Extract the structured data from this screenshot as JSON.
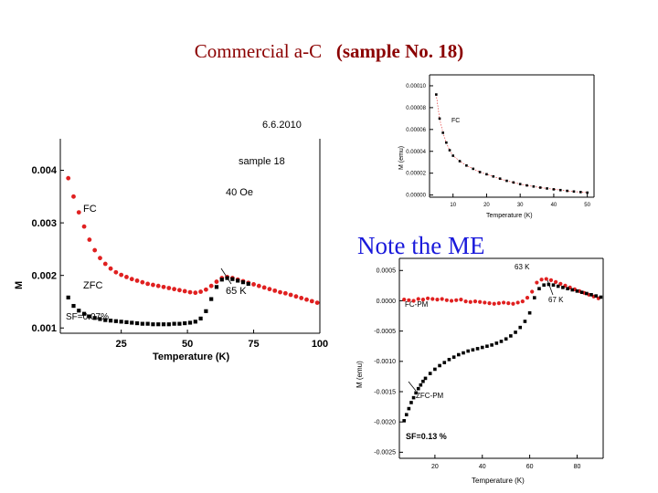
{
  "slide": {
    "title_plain": "Commercial a-C",
    "title_bold": "(sample No. 18)",
    "note": "Note the ME"
  },
  "colors": {
    "fc": "#e02020",
    "zfc": "#000000",
    "title": "#8b0000",
    "note": "#1a1adb",
    "sf_pink": "#d0208a"
  },
  "chart_data": [
    {
      "type": "scatter",
      "id": "main",
      "date": "6.6.2010",
      "xlabel": "Temperature (K)",
      "ylabel": "M",
      "xticks": [
        25,
        50,
        75,
        100
      ],
      "yticks": [
        "0.001",
        "0.002",
        "0.003",
        "0.004"
      ],
      "xlim": [
        2,
        100
      ],
      "ylim": [
        0.0009,
        0.0046
      ],
      "annotations": {
        "sample": "sample 18",
        "field": "40 Oe",
        "fc": "FC",
        "zfc": "ZFC",
        "peak": "65 K",
        "sf": "SF=0.07%"
      },
      "series": [
        {
          "name": "FC",
          "color": "#e02020",
          "x": [
            5,
            7,
            9,
            11,
            13,
            15,
            17,
            19,
            21,
            23,
            25,
            27,
            29,
            31,
            33,
            35,
            37,
            39,
            41,
            43,
            45,
            47,
            49,
            51,
            53,
            55,
            57,
            59,
            61,
            63,
            65,
            67,
            69,
            71,
            73,
            75,
            77,
            79,
            81,
            83,
            85,
            87,
            89,
            91,
            93,
            95,
            97,
            99
          ],
          "y": [
            0.00385,
            0.0035,
            0.0032,
            0.00293,
            0.00268,
            0.00248,
            0.00233,
            0.00222,
            0.00213,
            0.00206,
            0.00201,
            0.00197,
            0.00193,
            0.0019,
            0.00187,
            0.00184,
            0.00182,
            0.0018,
            0.00178,
            0.00176,
            0.00174,
            0.00172,
            0.0017,
            0.00168,
            0.00167,
            0.00169,
            0.00173,
            0.0018,
            0.00188,
            0.00195,
            0.00197,
            0.00195,
            0.00192,
            0.00189,
            0.00186,
            0.00183,
            0.0018,
            0.00177,
            0.00174,
            0.00171,
            0.00168,
            0.00166,
            0.00163,
            0.0016,
            0.00157,
            0.00154,
            0.00151,
            0.00148
          ]
        },
        {
          "name": "ZFC",
          "color": "#000000",
          "x": [
            5,
            7,
            9,
            11,
            13,
            15,
            17,
            19,
            21,
            23,
            25,
            27,
            29,
            31,
            33,
            35,
            37,
            39,
            41,
            43,
            45,
            47,
            49,
            51,
            53,
            55,
            57,
            59,
            61,
            63,
            65,
            67,
            69,
            71,
            73
          ],
          "y": [
            0.00158,
            0.00142,
            0.00133,
            0.00127,
            0.00122,
            0.00119,
            0.00117,
            0.00115,
            0.00114,
            0.00113,
            0.00112,
            0.00111,
            0.0011,
            0.00109,
            0.00108,
            0.00108,
            0.00107,
            0.00107,
            0.00107,
            0.00107,
            0.00108,
            0.00108,
            0.00109,
            0.0011,
            0.00112,
            0.00118,
            0.00132,
            0.00155,
            0.00178,
            0.00192,
            0.00195,
            0.00193,
            0.0019,
            0.00187,
            0.00184
          ]
        }
      ]
    },
    {
      "type": "scatter",
      "id": "inset",
      "xlabel": "Temperature (K)",
      "ylabel": "M (emu)",
      "xticks": [
        10,
        20,
        30,
        40,
        50
      ],
      "yticks": [
        "0.00010",
        "0.00008",
        "0.00006",
        "0.00004",
        "0.00002",
        "0.00000"
      ],
      "xlim": [
        3,
        52
      ],
      "ylim": [
        -2e-06,
        0.00011
      ],
      "annotations": {
        "fc": "FC"
      },
      "series": [
        {
          "name": "FC",
          "color": "#000000",
          "x": [
            5,
            6,
            7,
            8,
            9,
            10,
            12,
            14,
            16,
            18,
            20,
            22,
            24,
            26,
            28,
            30,
            32,
            34,
            36,
            38,
            40,
            42,
            44,
            46,
            48,
            50
          ],
          "y": [
            9.2e-05,
            7e-05,
            5.7e-05,
            4.8e-05,
            4.1e-05,
            3.6e-05,
            3.1e-05,
            2.7e-05,
            2.4e-05,
            2.1e-05,
            1.9e-05,
            1.7e-05,
            1.5e-05,
            1.3e-05,
            1.15e-05,
            1e-05,
            8.8e-06,
            7.8e-06,
            6.8e-06,
            6e-06,
            5.2e-06,
            4.5e-06,
            3.8e-06,
            3.2e-06,
            2.7e-06,
            2.2e-06
          ]
        }
      ]
    },
    {
      "type": "scatter",
      "id": "pm",
      "xlabel": "Temperature (K)",
      "ylabel": "M (emu)",
      "xticks": [
        20,
        40,
        60,
        80
      ],
      "yticks": [
        "0.0005",
        "0.0000",
        "-0.0005",
        "-0.0010",
        "-0.0015",
        "-0.0020",
        "-0.0025"
      ],
      "xlim": [
        5,
        91
      ],
      "ylim": [
        -0.0026,
        0.0007
      ],
      "annotations": {
        "peak63": "63 K",
        "peak67": "67 K",
        "fc": "FC-PM",
        "zfc": "ZFC-PM",
        "sf": "SF=0.13 %"
      },
      "series": [
        {
          "name": "FC-PM",
          "color": "#e02020",
          "x": [
            7,
            9,
            11,
            13,
            15,
            17,
            19,
            21,
            23,
            25,
            27,
            29,
            31,
            33,
            35,
            37,
            39,
            41,
            43,
            45,
            47,
            49,
            51,
            53,
            55,
            57,
            59,
            61,
            63,
            65,
            67,
            69,
            71,
            73,
            75,
            77,
            79,
            81,
            83,
            85,
            87,
            89
          ],
          "y": [
            2e-05,
            1e-05,
            0.0,
            3e-05,
            2e-05,
            4e-05,
            3e-05,
            2e-05,
            3e-05,
            1e-05,
            0.0,
            1e-05,
            2e-05,
            -1e-05,
            -2e-05,
            -1e-05,
            -2e-05,
            -3e-05,
            -4e-05,
            -5e-05,
            -4e-05,
            -3e-05,
            -4e-05,
            -5e-05,
            -3e-05,
            -1e-05,
            5e-05,
            0.00015,
            0.0003,
            0.00035,
            0.00036,
            0.00034,
            0.00031,
            0.00028,
            0.00025,
            0.00022,
            0.00019,
            0.00016,
            0.00013,
            0.0001,
            7e-05,
            4e-05
          ]
        },
        {
          "name": "ZFC-PM",
          "color": "#000000",
          "x": [
            7,
            8,
            9,
            10,
            11,
            12,
            13,
            14,
            15,
            16,
            18,
            20,
            22,
            24,
            26,
            28,
            30,
            32,
            34,
            36,
            38,
            40,
            42,
            44,
            46,
            48,
            50,
            52,
            54,
            56,
            58,
            60,
            62,
            64,
            66,
            68,
            70,
            72,
            74,
            76,
            78,
            80,
            82,
            84,
            86,
            88,
            90
          ],
          "y": [
            -0.00198,
            -0.00188,
            -0.00178,
            -0.00168,
            -0.0016,
            -0.00152,
            -0.00145,
            -0.00139,
            -0.00133,
            -0.00128,
            -0.0012,
            -0.00113,
            -0.00107,
            -0.00102,
            -0.00097,
            -0.00093,
            -0.00089,
            -0.00086,
            -0.00083,
            -0.00081,
            -0.00079,
            -0.00077,
            -0.00075,
            -0.00073,
            -0.0007,
            -0.00067,
            -0.00063,
            -0.00058,
            -0.00052,
            -0.00044,
            -0.00034,
            -0.0002,
            5e-05,
            0.0002,
            0.00026,
            0.00027,
            0.00026,
            0.00024,
            0.00022,
            0.0002,
            0.00018,
            0.00016,
            0.00014,
            0.00012,
            0.0001,
            8e-05,
            6e-05
          ]
        }
      ]
    }
  ]
}
